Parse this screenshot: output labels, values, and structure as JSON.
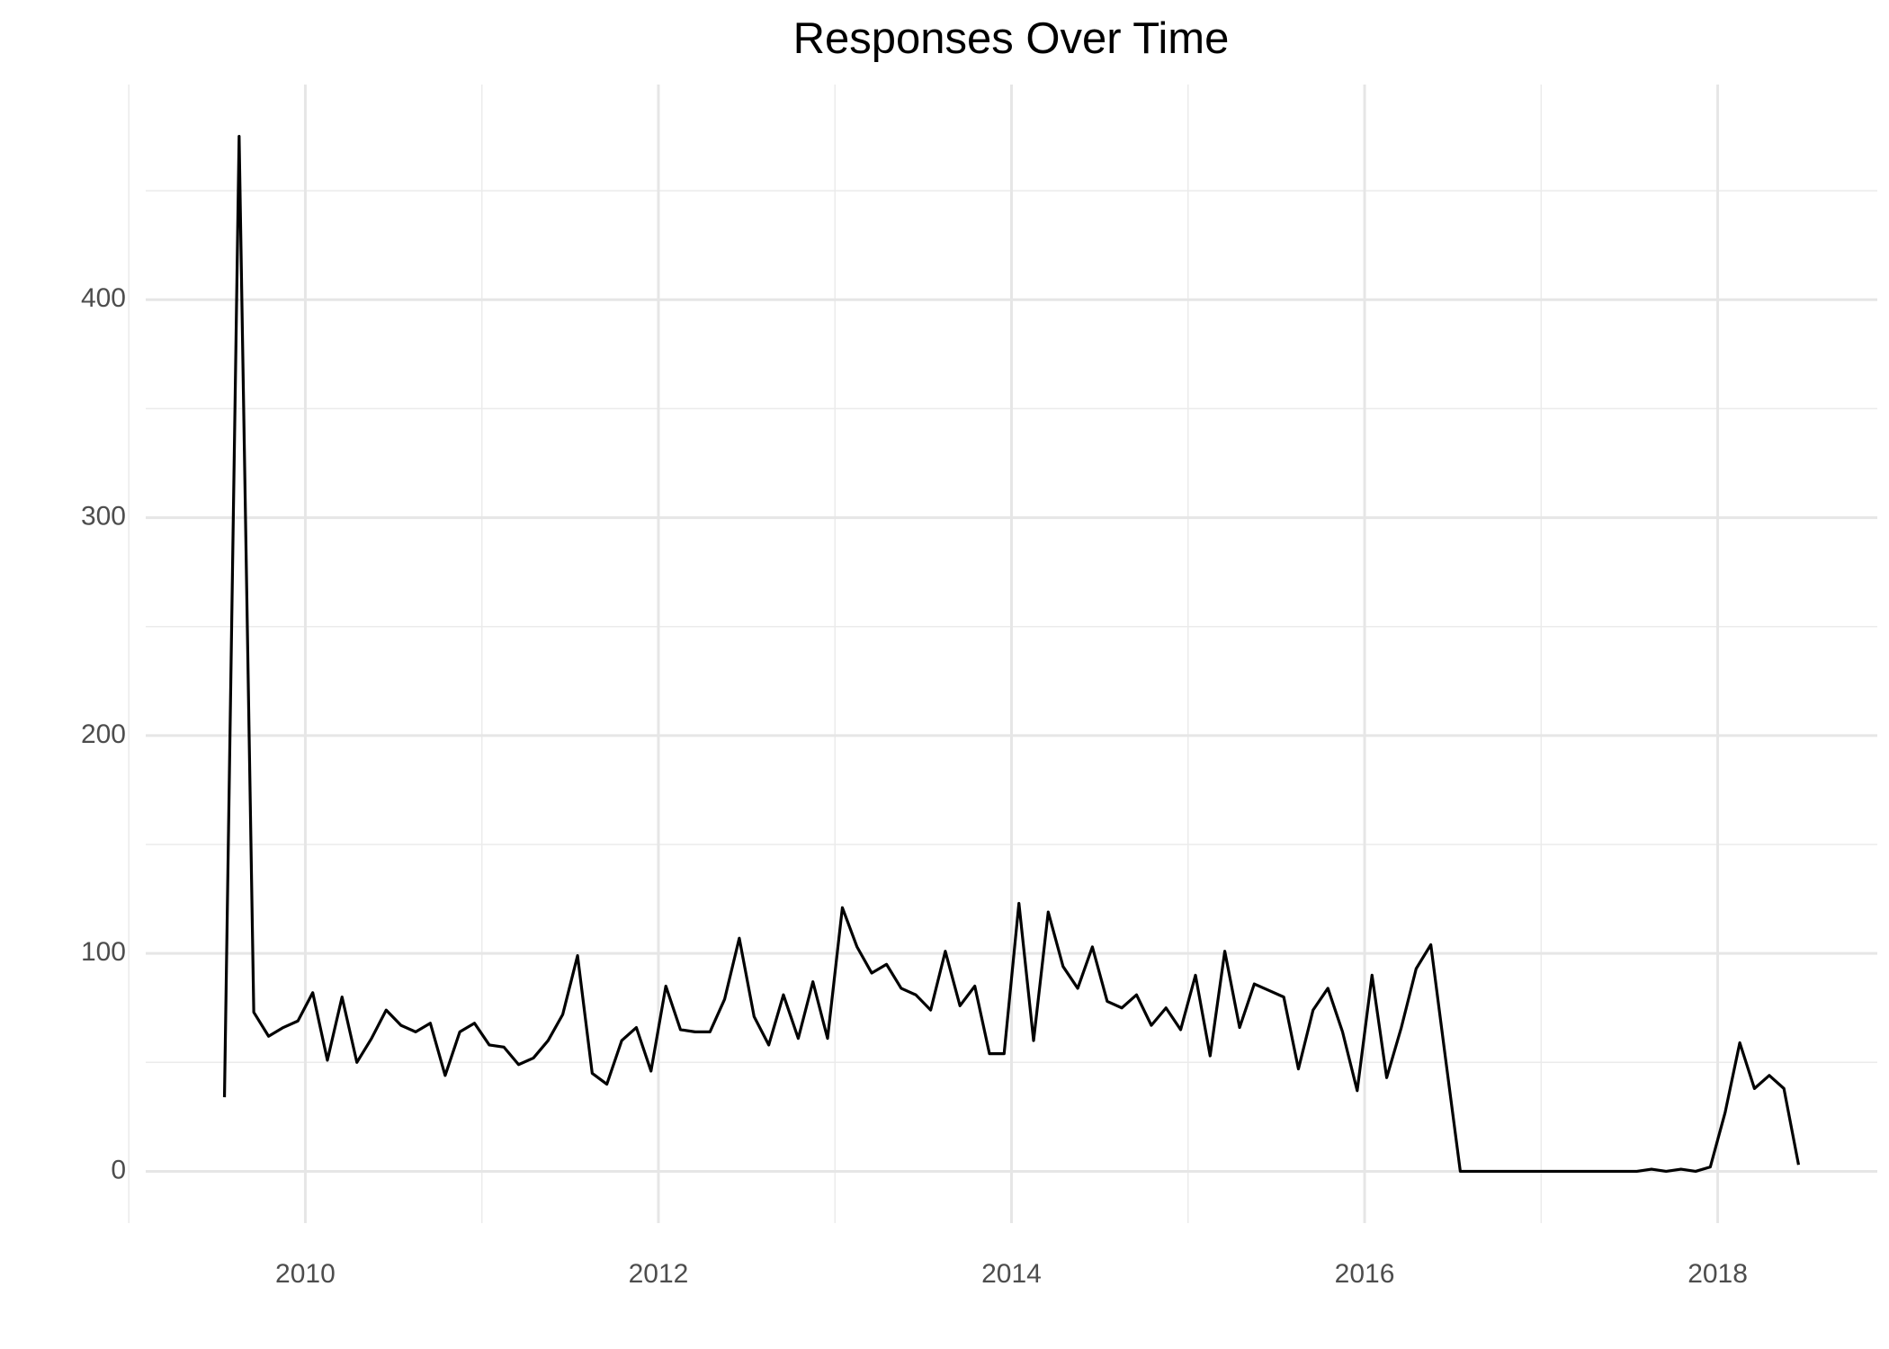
{
  "chart_data": {
    "type": "line",
    "title": "Responses Over Time",
    "x": [
      2009.542,
      2009.625,
      2009.708,
      2009.792,
      2009.875,
      2009.958,
      2010.042,
      2010.125,
      2010.208,
      2010.292,
      2010.375,
      2010.458,
      2010.542,
      2010.625,
      2010.708,
      2010.792,
      2010.875,
      2010.958,
      2011.042,
      2011.125,
      2011.208,
      2011.292,
      2011.375,
      2011.458,
      2011.542,
      2011.625,
      2011.708,
      2011.792,
      2011.875,
      2011.958,
      2012.042,
      2012.125,
      2012.208,
      2012.292,
      2012.375,
      2012.458,
      2012.542,
      2012.625,
      2012.708,
      2012.792,
      2012.875,
      2012.958,
      2013.042,
      2013.125,
      2013.208,
      2013.292,
      2013.375,
      2013.458,
      2013.542,
      2013.625,
      2013.708,
      2013.792,
      2013.875,
      2013.958,
      2014.042,
      2014.125,
      2014.208,
      2014.292,
      2014.375,
      2014.458,
      2014.542,
      2014.625,
      2014.708,
      2014.792,
      2014.875,
      2014.958,
      2015.042,
      2015.125,
      2015.208,
      2015.292,
      2015.375,
      2015.458,
      2015.542,
      2015.625,
      2015.708,
      2015.792,
      2015.875,
      2015.958,
      2016.042,
      2016.125,
      2016.208,
      2016.292,
      2016.375,
      2016.458,
      2016.542,
      2016.625,
      2016.708,
      2016.792,
      2016.875,
      2016.958,
      2017.042,
      2017.125,
      2017.208,
      2017.292,
      2017.375,
      2017.458,
      2017.542,
      2017.625,
      2017.708,
      2017.792,
      2017.875,
      2017.958,
      2018.042,
      2018.125,
      2018.208,
      2018.292,
      2018.375,
      2018.458
    ],
    "values": [
      34,
      475,
      73,
      62,
      66,
      69,
      82,
      51,
      80,
      50,
      61,
      74,
      67,
      64,
      68,
      44,
      64,
      68,
      58,
      57,
      49,
      52,
      60,
      72,
      99,
      45,
      40,
      60,
      66,
      46,
      85,
      65,
      64,
      64,
      79,
      107,
      71,
      58,
      81,
      61,
      87,
      61,
      121,
      103,
      91,
      95,
      84,
      81,
      74,
      101,
      76,
      85,
      54,
      54,
      123,
      60,
      119,
      94,
      84,
      103,
      78,
      75,
      81,
      67,
      75,
      65,
      90,
      53,
      101,
      66,
      86,
      83,
      80,
      47,
      74,
      84,
      64,
      37,
      90,
      43,
      66,
      93,
      104,
      52,
      0,
      0,
      0,
      0,
      0,
      0,
      0,
      0,
      0,
      0,
      0,
      0,
      0,
      1,
      0,
      1,
      0,
      2,
      27,
      59,
      38,
      44,
      38,
      3
    ],
    "color": "#000000",
    "xlim": [
      2009.096,
      2018.904
    ],
    "xticks": [
      2010,
      2012,
      2014,
      2016,
      2018
    ],
    "xminor": [
      2009,
      2011,
      2013,
      2015,
      2017
    ],
    "ylim": [
      -23.75,
      498.75
    ],
    "yticks": [
      0,
      100,
      200,
      300,
      400
    ],
    "yminor": [
      50,
      150,
      250,
      350,
      450
    ],
    "grid": true
  }
}
